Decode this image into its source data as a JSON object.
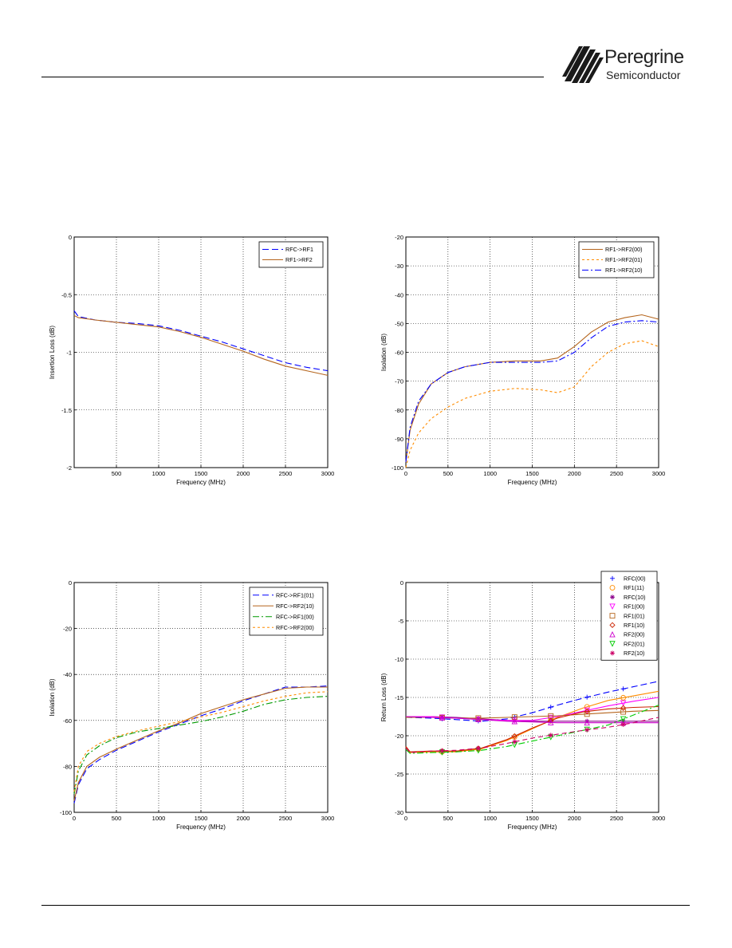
{
  "brand": {
    "name": "Peregrine",
    "sub": "Semiconductor"
  },
  "chart_data": [
    {
      "type": "line",
      "xlabel": "Frequency (MHz)",
      "ylabel": "Insertion Loss (dB)",
      "xlim": [
        0,
        3000
      ],
      "ylim": [
        -2,
        0
      ],
      "xticks": [
        0,
        500,
        1000,
        1500,
        2000,
        2500,
        3000
      ],
      "xtick_labels": [
        "",
        "500",
        "1000",
        "1500",
        "2000",
        "2500",
        "3000"
      ],
      "yticks": [
        0,
        -0.5,
        -1,
        -1.5,
        -2
      ],
      "ytick_labels": [
        "0",
        "-0.5",
        "-1",
        "-1.5",
        "-2"
      ],
      "grid": true,
      "legend": "top-right",
      "series": [
        {
          "name": "RFC->RF1",
          "color": "#0000ff",
          "dash": "8,4",
          "x": [
            0,
            50,
            250,
            500,
            750,
            1000,
            1250,
            1500,
            1750,
            2000,
            2250,
            2500,
            2750,
            3000
          ],
          "y": [
            -0.64,
            -0.69,
            -0.72,
            -0.74,
            -0.75,
            -0.77,
            -0.81,
            -0.86,
            -0.91,
            -0.97,
            -1.03,
            -1.09,
            -1.13,
            -1.16
          ]
        },
        {
          "name": "RF1->RF2",
          "color": "#b5651d",
          "dash": "",
          "x": [
            0,
            50,
            250,
            500,
            750,
            1000,
            1250,
            1500,
            1750,
            2000,
            2250,
            2500,
            2750,
            3000
          ],
          "y": [
            -0.68,
            -0.7,
            -0.72,
            -0.74,
            -0.76,
            -0.78,
            -0.82,
            -0.87,
            -0.93,
            -0.99,
            -1.06,
            -1.12,
            -1.16,
            -1.2
          ]
        }
      ]
    },
    {
      "type": "line",
      "xlabel": "Frequency (MHz)",
      "ylabel": "Isolation (dB)",
      "xlim": [
        0,
        3000
      ],
      "ylim": [
        -100,
        -20
      ],
      "xticks": [
        0,
        500,
        1000,
        1500,
        2000,
        2500,
        3000
      ],
      "xtick_labels": [
        "0",
        "500",
        "1000",
        "1500",
        "2000",
        "2500",
        "3000"
      ],
      "yticks": [
        -20,
        -30,
        -40,
        -50,
        -60,
        -70,
        -80,
        -90,
        -100
      ],
      "ytick_labels": [
        "-20",
        "-30",
        "-40",
        "-50",
        "-60",
        "-70",
        "-80",
        "-90",
        "-100"
      ],
      "grid": true,
      "legend": "top-right",
      "series": [
        {
          "name": "RF1->RF2(00)",
          "color": "#b5651d",
          "dash": "",
          "x": [
            0,
            50,
            150,
            300,
            500,
            700,
            1000,
            1300,
            1600,
            1800,
            2000,
            2200,
            2400,
            2600,
            2800,
            3000
          ],
          "y": [
            -98,
            -87,
            -78,
            -71,
            -67,
            -65,
            -63.5,
            -63,
            -63,
            -62,
            -58,
            -53,
            -49.5,
            -48,
            -47,
            -48.5
          ]
        },
        {
          "name": "RF1->RF2(01)",
          "color": "#ff8c00",
          "dash": "3,3",
          "x": [
            0,
            50,
            150,
            300,
            500,
            700,
            1000,
            1300,
            1600,
            1800,
            2000,
            2200,
            2400,
            2600,
            2800,
            3000
          ],
          "y": [
            -100,
            -94,
            -88,
            -83,
            -79,
            -76,
            -73.5,
            -72.5,
            -73,
            -74,
            -72,
            -65,
            -60,
            -57,
            -56,
            -58
          ]
        },
        {
          "name": "RF1->RF2(10)",
          "color": "#0000ff",
          "dash": "8,3,2,3",
          "x": [
            0,
            50,
            150,
            300,
            500,
            700,
            1000,
            1300,
            1600,
            1800,
            2000,
            2200,
            2400,
            2600,
            2800,
            3000
          ],
          "y": [
            -98,
            -86,
            -77,
            -71,
            -67,
            -65,
            -63.5,
            -63.5,
            -63.5,
            -63,
            -60,
            -55,
            -51,
            -49.5,
            -49,
            -49.5
          ]
        }
      ]
    },
    {
      "type": "line",
      "xlabel": "Frequency (MHz)",
      "ylabel": "Isolation (dB)",
      "xlim": [
        0,
        3000
      ],
      "ylim": [
        -100,
        0
      ],
      "xticks": [
        0,
        500,
        1000,
        1500,
        2000,
        2500,
        3000
      ],
      "xtick_labels": [
        "0",
        "500",
        "1000",
        "1500",
        "2000",
        "2500",
        "3000"
      ],
      "yticks": [
        0,
        -20,
        -40,
        -60,
        -80,
        -100
      ],
      "ytick_labels": [
        "0",
        "-20",
        "-40",
        "-60",
        "-80",
        "-100"
      ],
      "grid": true,
      "legend": "top-right",
      "series": [
        {
          "name": "RFC->RF1(01)",
          "color": "#0000ff",
          "dash": "8,4",
          "x": [
            0,
            50,
            150,
            300,
            500,
            750,
            1000,
            1250,
            1500,
            1750,
            2000,
            2250,
            2500,
            2750,
            3000
          ],
          "y": [
            -96,
            -88,
            -81,
            -77,
            -73,
            -69,
            -65,
            -61.5,
            -58,
            -55,
            -51.5,
            -48.5,
            -45.5,
            -45.5,
            -45
          ]
        },
        {
          "name": "RFC->RF2(10)",
          "color": "#b5651d",
          "dash": "",
          "x": [
            0,
            50,
            150,
            300,
            500,
            750,
            1000,
            1250,
            1500,
            1750,
            2000,
            2250,
            2500,
            2750,
            3000
          ],
          "y": [
            -95,
            -87,
            -80,
            -76,
            -72.5,
            -68.5,
            -64.5,
            -61,
            -57,
            -54,
            -51,
            -48.5,
            -46,
            -45.5,
            -45.5
          ]
        },
        {
          "name": "RFC->RF1(00)",
          "color": "#009900",
          "dash": "8,3,2,3",
          "x": [
            0,
            50,
            150,
            300,
            500,
            750,
            1000,
            1250,
            1500,
            1750,
            2000,
            2250,
            2500,
            2750,
            3000
          ],
          "y": [
            -92,
            -82,
            -75,
            -71,
            -67.5,
            -65,
            -63.5,
            -62,
            -60.5,
            -58.5,
            -56,
            -53,
            -51,
            -50,
            -49.5
          ]
        },
        {
          "name": "RFC->RF2(00)",
          "color": "#ff8c00",
          "dash": "3,3",
          "x": [
            0,
            50,
            150,
            300,
            500,
            750,
            1000,
            1250,
            1500,
            1750,
            2000,
            2250,
            2500,
            2750,
            3000
          ],
          "y": [
            -91,
            -80,
            -73.5,
            -70,
            -67,
            -64.5,
            -62.5,
            -60.5,
            -58.5,
            -56.5,
            -54,
            -51.5,
            -49.5,
            -48,
            -47.5
          ]
        }
      ]
    },
    {
      "type": "line",
      "xlabel": "Frequency (MHz)",
      "ylabel": "Return Loss (dB)",
      "xlim": [
        0,
        3000
      ],
      "ylim": [
        -30,
        0
      ],
      "xticks": [
        0,
        500,
        1000,
        1500,
        2000,
        2500,
        3000
      ],
      "xtick_labels": [
        "0",
        "500",
        "1000",
        "1500",
        "2000",
        "2500",
        "3000"
      ],
      "yticks": [
        0,
        -5,
        -10,
        -15,
        -20,
        -25,
        -30
      ],
      "ytick_labels": [
        "0",
        "-5",
        "-10",
        "-15",
        "-20",
        "-25",
        "-30"
      ],
      "grid": true,
      "legend": "top-right",
      "marker_x": [
        430,
        860,
        1290,
        1720,
        2150,
        2580
      ],
      "series": [
        {
          "name": "RFC(00)",
          "color": "#0000ff",
          "dash": "8,4",
          "marker": "+",
          "x": [
            0,
            300,
            600,
            900,
            1200,
            1500,
            1800,
            2100,
            2400,
            2700,
            3000
          ],
          "y": [
            -17.6,
            -17.7,
            -17.9,
            -18.1,
            -17.8,
            -17,
            -16,
            -15.1,
            -14.3,
            -13.6,
            -12.9
          ]
        },
        {
          "name": "RF1(11)",
          "color": "#ff8c00",
          "dash": "",
          "marker": "o",
          "x": [
            0,
            50,
            300,
            600,
            900,
            1200,
            1500,
            1800,
            2100,
            2400,
            2700,
            3000
          ],
          "y": [
            -21.5,
            -22.2,
            -22.1,
            -22.1,
            -21.7,
            -20.6,
            -19.1,
            -17.6,
            -16.4,
            -15.4,
            -14.8,
            -14.2
          ]
        },
        {
          "name": "RFC(10)",
          "color": "#8b008b",
          "dash": "",
          "marker": "*",
          "x": [
            0,
            300,
            600,
            900,
            1200,
            1500,
            1800,
            2100,
            2400,
            2700,
            3000
          ],
          "y": [
            -17.5,
            -17.5,
            -17.6,
            -17.8,
            -18,
            -18.1,
            -18.1,
            -18.1,
            -18.1,
            -18.1,
            -18.1
          ]
        },
        {
          "name": "RF1(00)",
          "color": "#ff00ff",
          "dash": "",
          "marker": "v",
          "x": [
            0,
            300,
            600,
            900,
            1200,
            1500,
            1800,
            2100,
            2400,
            2700,
            3000
          ],
          "y": [
            -17.5,
            -17.5,
            -17.7,
            -17.9,
            -18,
            -18,
            -17.5,
            -16.8,
            -16.1,
            -15.5,
            -15
          ]
        },
        {
          "name": "RF1(01)",
          "color": "#b5651d",
          "dash": "",
          "marker": "s",
          "x": [
            0,
            300,
            600,
            900,
            1200,
            1500,
            1800,
            2100,
            2400,
            2700,
            3000
          ],
          "y": [
            -17.6,
            -17.6,
            -17.7,
            -17.7,
            -17.6,
            -17.5,
            -17.4,
            -17.2,
            -17,
            -16.8,
            -16.7
          ]
        },
        {
          "name": "RF1(10)",
          "color": "#cc2200",
          "dash": "",
          "marker": "d",
          "x": [
            0,
            50,
            300,
            600,
            900,
            1200,
            1500,
            1800,
            2100,
            2400,
            2700,
            3000
          ],
          "y": [
            -21.4,
            -22.1,
            -22,
            -22,
            -21.6,
            -20.5,
            -19,
            -17.7,
            -16.9,
            -16.5,
            -16.3,
            -16.2
          ]
        },
        {
          "name": "RF2(00)",
          "color": "#cc00cc",
          "dash": "",
          "marker": "^",
          "x": [
            0,
            300,
            600,
            900,
            1200,
            1500,
            1800,
            2100,
            2400,
            2700,
            3000
          ],
          "y": [
            -17.5,
            -17.6,
            -17.7,
            -17.9,
            -18.1,
            -18.2,
            -18.3,
            -18.3,
            -18.3,
            -18.3,
            -18.3
          ]
        },
        {
          "name": "RF2(01)",
          "color": "#00cc00",
          "dash": "8,3,2,3",
          "marker": "V",
          "x": [
            0,
            50,
            300,
            600,
            900,
            1200,
            1500,
            1800,
            2100,
            2400,
            2700,
            3000
          ],
          "y": [
            -21.8,
            -22.3,
            -22.2,
            -22.1,
            -21.9,
            -21.4,
            -20.7,
            -20,
            -19.3,
            -18.6,
            -17.3,
            -16
          ]
        },
        {
          "name": "RF2(10)",
          "color": "#cc0066",
          "dash": "6,4",
          "marker": "*",
          "x": [
            0,
            50,
            300,
            600,
            900,
            1200,
            1500,
            1800,
            2100,
            2400,
            2700,
            3000
          ],
          "y": [
            -21.6,
            -22.2,
            -22,
            -21.9,
            -21.6,
            -21,
            -20.3,
            -19.8,
            -19.3,
            -18.9,
            -18.3,
            -17.6
          ]
        }
      ]
    }
  ]
}
